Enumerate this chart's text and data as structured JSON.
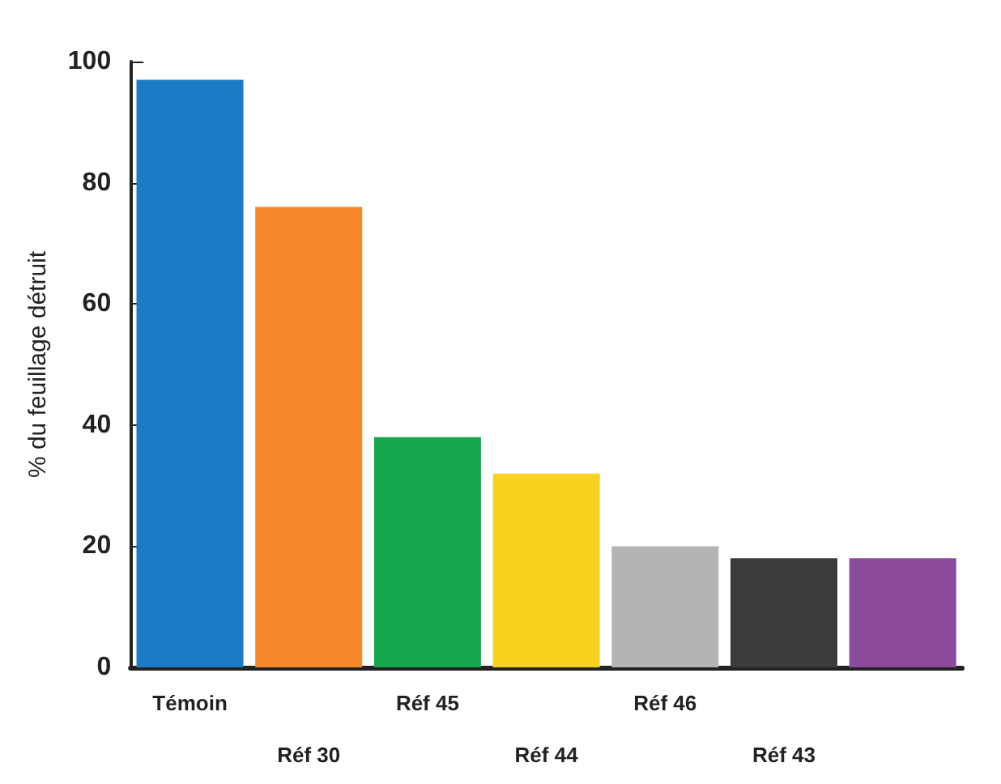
{
  "chart_data": {
    "type": "bar",
    "ylabel": "% du feuillage détruit",
    "categories": [
      "Témoin",
      "Réf 30",
      "Réf 45",
      "Réf 44",
      "Réf 46",
      "Réf 43",
      null
    ],
    "values": [
      97,
      76,
      38,
      32,
      20,
      18,
      18
    ],
    "colors": [
      "#1a7cc4",
      "#f5862a",
      "#17a84e",
      "#f7d21e",
      "#b4b4b4",
      "#3c3c3c",
      "#8c4a9c"
    ],
    "ylim": [
      0,
      100
    ],
    "yticks": [
      0,
      20,
      40,
      60,
      80,
      100
    ],
    "grid": false
  }
}
